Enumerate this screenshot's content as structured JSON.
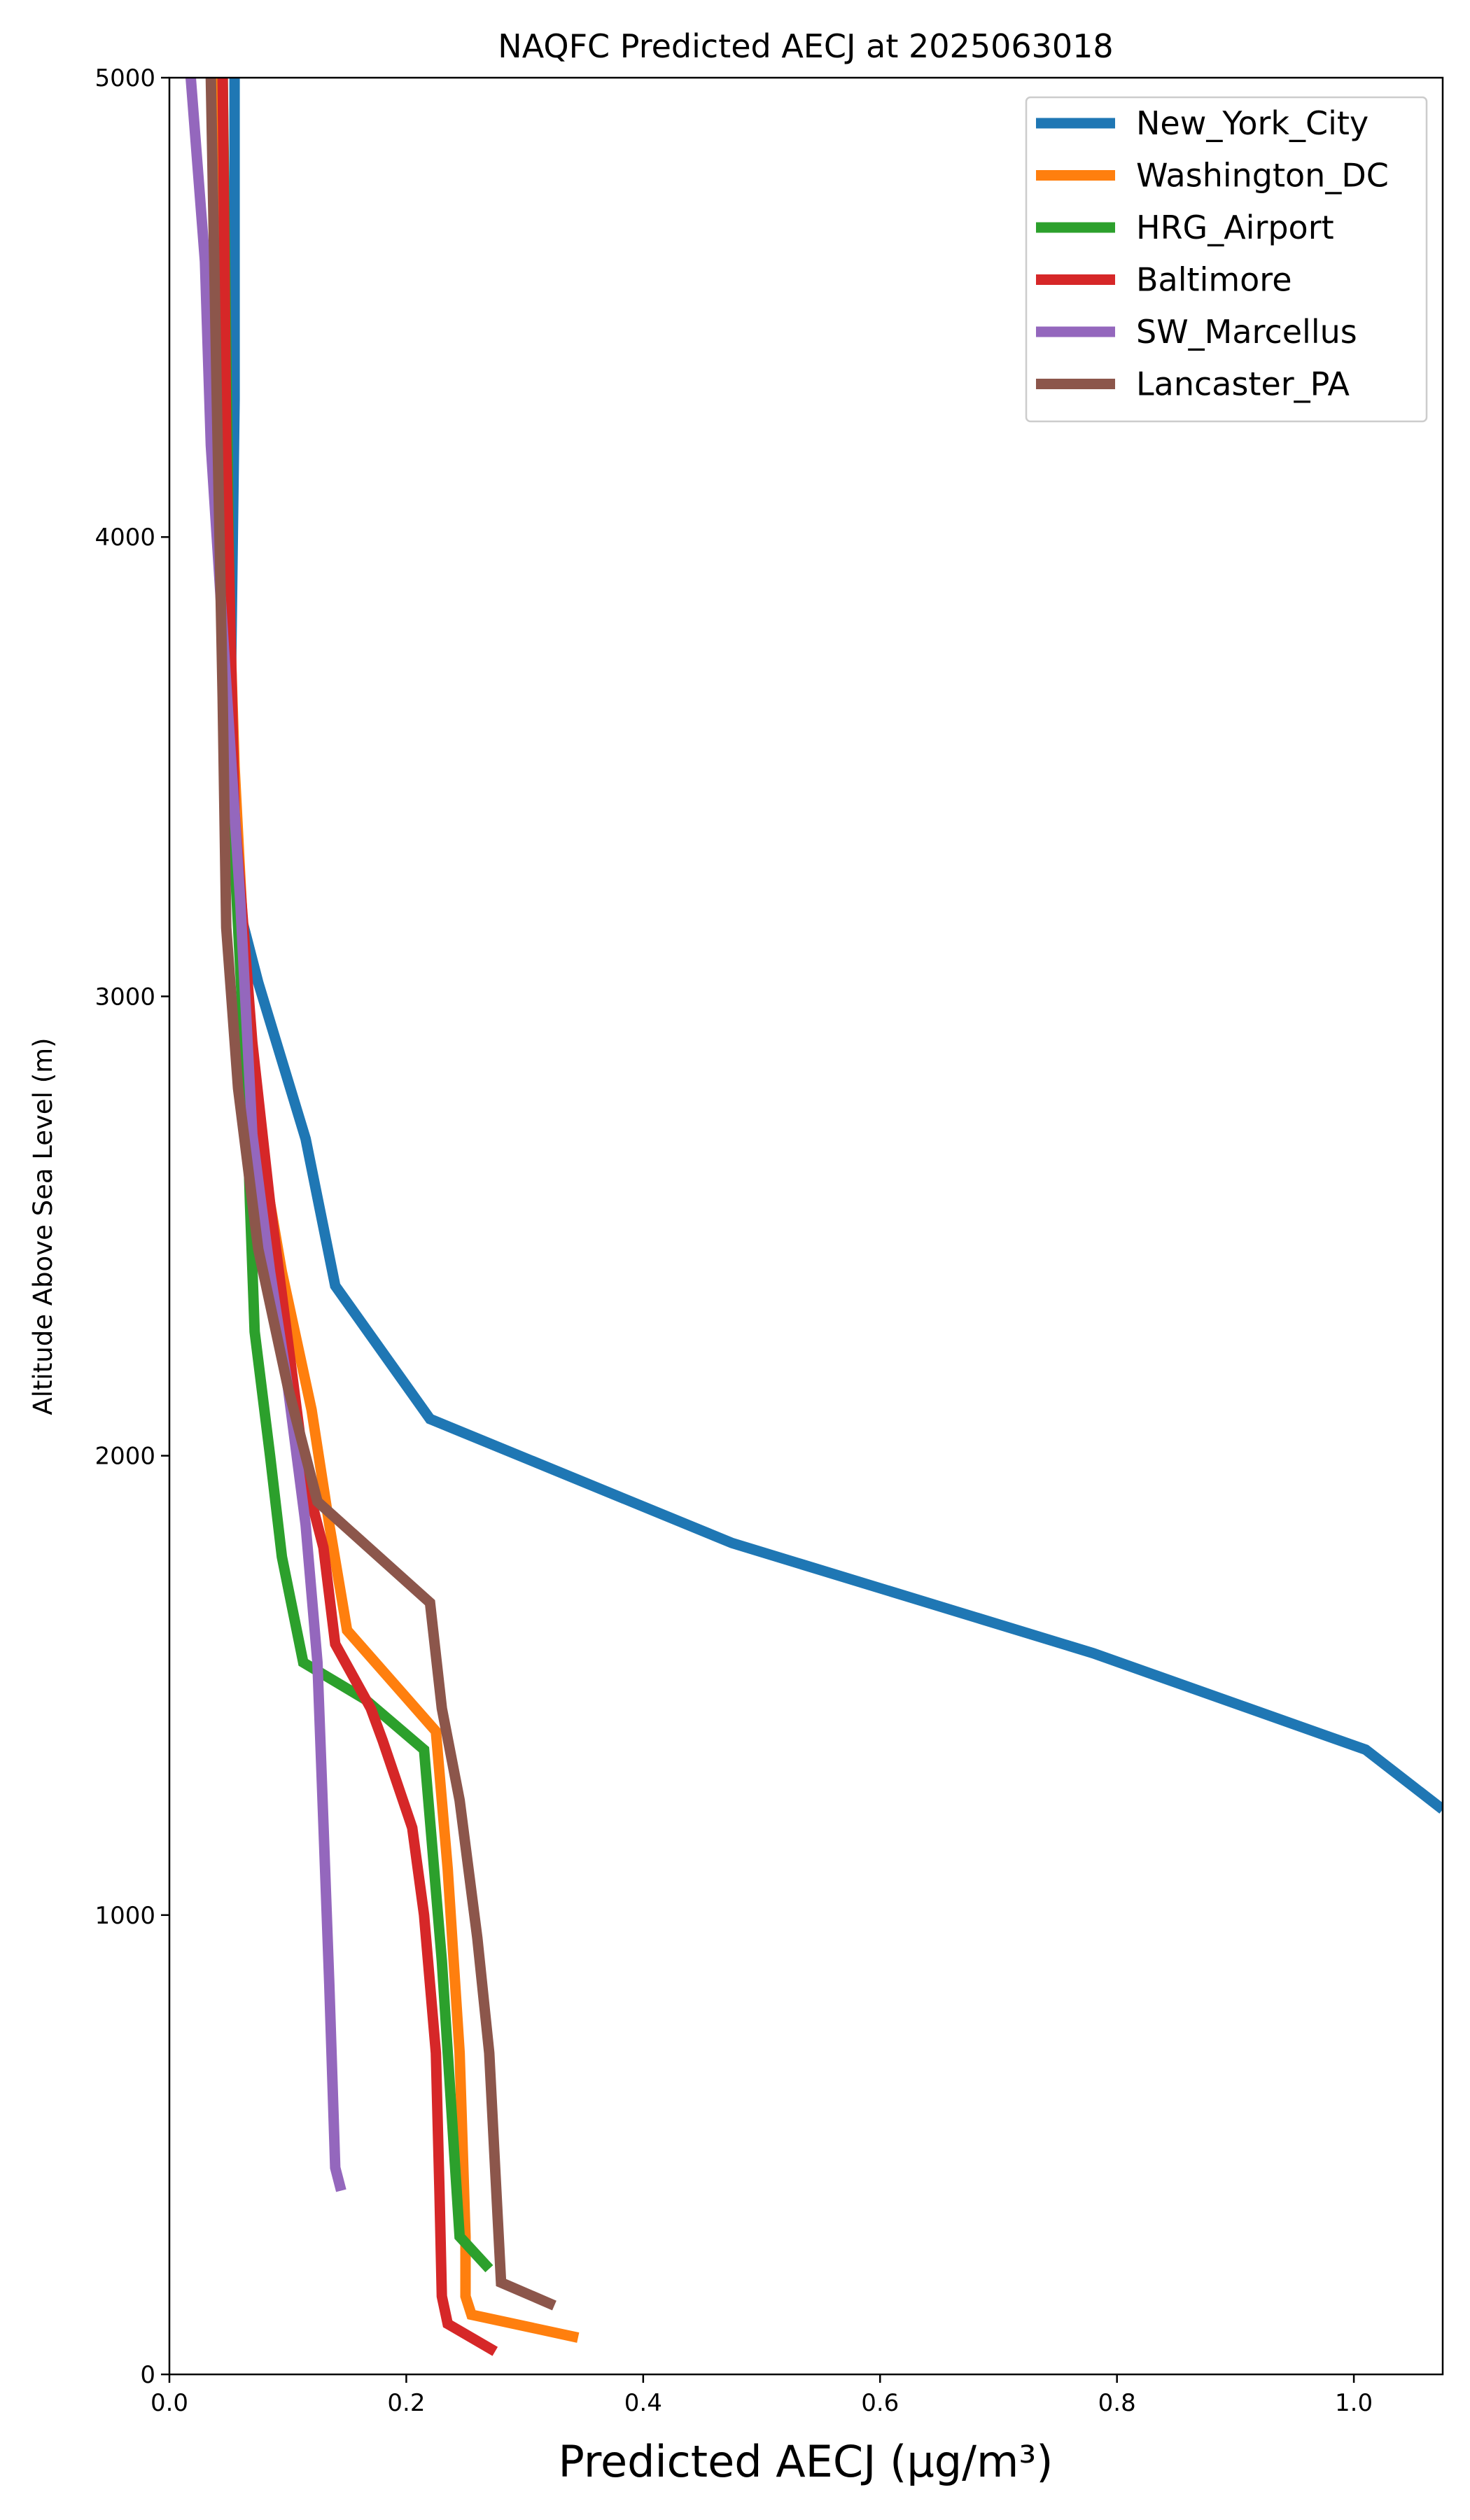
{
  "chart_data": {
    "type": "line",
    "title": "NAQFC Predicted AECJ at 2025063018",
    "xlabel": "Predicted AECJ (μg/m³)",
    "ylabel": "Altitude Above Sea Level (m)",
    "xlim": [
      0,
      1.075
    ],
    "ylim": [
      0,
      5000
    ],
    "xticks": [
      0.0,
      0.2,
      0.4,
      0.6,
      0.8,
      1.0
    ],
    "xtick_labels": [
      "0.0",
      "0.2",
      "0.4",
      "0.6",
      "0.8",
      "1.0"
    ],
    "yticks": [
      0,
      1000,
      2000,
      3000,
      4000,
      5000
    ],
    "ytick_labels": [
      "0",
      "1000",
      "2000",
      "3000",
      "4000",
      "5000"
    ],
    "grid": false,
    "legend_position": "top-right",
    "series": [
      {
        "name": "New_York_City",
        "color": "#1f77b4",
        "points": [
          [
            0.055,
            5000
          ],
          [
            0.055,
            4300
          ],
          [
            0.052,
            3700
          ],
          [
            0.058,
            3200
          ],
          [
            0.075,
            3030
          ],
          [
            0.115,
            2690
          ],
          [
            0.14,
            2370
          ],
          [
            0.22,
            2080
          ],
          [
            0.475,
            1810
          ],
          [
            0.78,
            1570
          ],
          [
            1.01,
            1360
          ],
          [
            1.075,
            1230
          ]
        ]
      },
      {
        "name": "Washington_DC",
        "color": "#ff7f0e",
        "points": [
          [
            0.04,
            5000
          ],
          [
            0.045,
            4300
          ],
          [
            0.055,
            3500
          ],
          [
            0.065,
            3000
          ],
          [
            0.075,
            2700
          ],
          [
            0.095,
            2400
          ],
          [
            0.12,
            2100
          ],
          [
            0.135,
            1850
          ],
          [
            0.15,
            1620
          ],
          [
            0.225,
            1400
          ],
          [
            0.235,
            1100
          ],
          [
            0.245,
            700
          ],
          [
            0.25,
            300
          ],
          [
            0.25,
            170
          ],
          [
            0.255,
            130
          ],
          [
            0.345,
            80
          ]
        ]
      },
      {
        "name": "HRG_Airport",
        "color": "#2ca02c",
        "points": [
          [
            0.045,
            5000
          ],
          [
            0.05,
            4000
          ],
          [
            0.055,
            3300
          ],
          [
            0.065,
            2800
          ],
          [
            0.068,
            2550
          ],
          [
            0.072,
            2270
          ],
          [
            0.085,
            2000
          ],
          [
            0.095,
            1780
          ],
          [
            0.113,
            1550
          ],
          [
            0.165,
            1470
          ],
          [
            0.215,
            1360
          ],
          [
            0.23,
            900
          ],
          [
            0.24,
            500
          ],
          [
            0.245,
            300
          ],
          [
            0.27,
            230
          ]
        ]
      },
      {
        "name": "Baltimore",
        "color": "#d62728",
        "points": [
          [
            0.045,
            5000
          ],
          [
            0.048,
            4200
          ],
          [
            0.055,
            3400
          ],
          [
            0.07,
            2900
          ],
          [
            0.085,
            2550
          ],
          [
            0.1,
            2250
          ],
          [
            0.115,
            1950
          ],
          [
            0.13,
            1800
          ],
          [
            0.14,
            1590
          ],
          [
            0.17,
            1450
          ],
          [
            0.18,
            1380
          ],
          [
            0.205,
            1190
          ],
          [
            0.215,
            1000
          ],
          [
            0.225,
            700
          ],
          [
            0.228,
            400
          ],
          [
            0.23,
            170
          ],
          [
            0.235,
            110
          ],
          [
            0.275,
            50
          ]
        ]
      },
      {
        "name": "SW_Marcellus",
        "color": "#9467bd",
        "points": [
          [
            0.018,
            5000
          ],
          [
            0.03,
            4600
          ],
          [
            0.035,
            4200
          ],
          [
            0.045,
            3800
          ],
          [
            0.06,
            3200
          ],
          [
            0.07,
            2700
          ],
          [
            0.085,
            2400
          ],
          [
            0.1,
            2150
          ],
          [
            0.115,
            1850
          ],
          [
            0.125,
            1550
          ],
          [
            0.13,
            1200
          ],
          [
            0.135,
            850
          ],
          [
            0.14,
            450
          ],
          [
            0.145,
            400
          ]
        ]
      },
      {
        "name": "Lancaster_PA",
        "color": "#8c564b",
        "points": [
          [
            0.035,
            5000
          ],
          [
            0.04,
            4300
          ],
          [
            0.045,
            3650
          ],
          [
            0.048,
            3150
          ],
          [
            0.058,
            2800
          ],
          [
            0.075,
            2450
          ],
          [
            0.1,
            2150
          ],
          [
            0.125,
            1900
          ],
          [
            0.22,
            1680
          ],
          [
            0.23,
            1450
          ],
          [
            0.245,
            1250
          ],
          [
            0.26,
            950
          ],
          [
            0.27,
            700
          ],
          [
            0.275,
            450
          ],
          [
            0.28,
            200
          ],
          [
            0.325,
            150
          ]
        ]
      }
    ]
  }
}
